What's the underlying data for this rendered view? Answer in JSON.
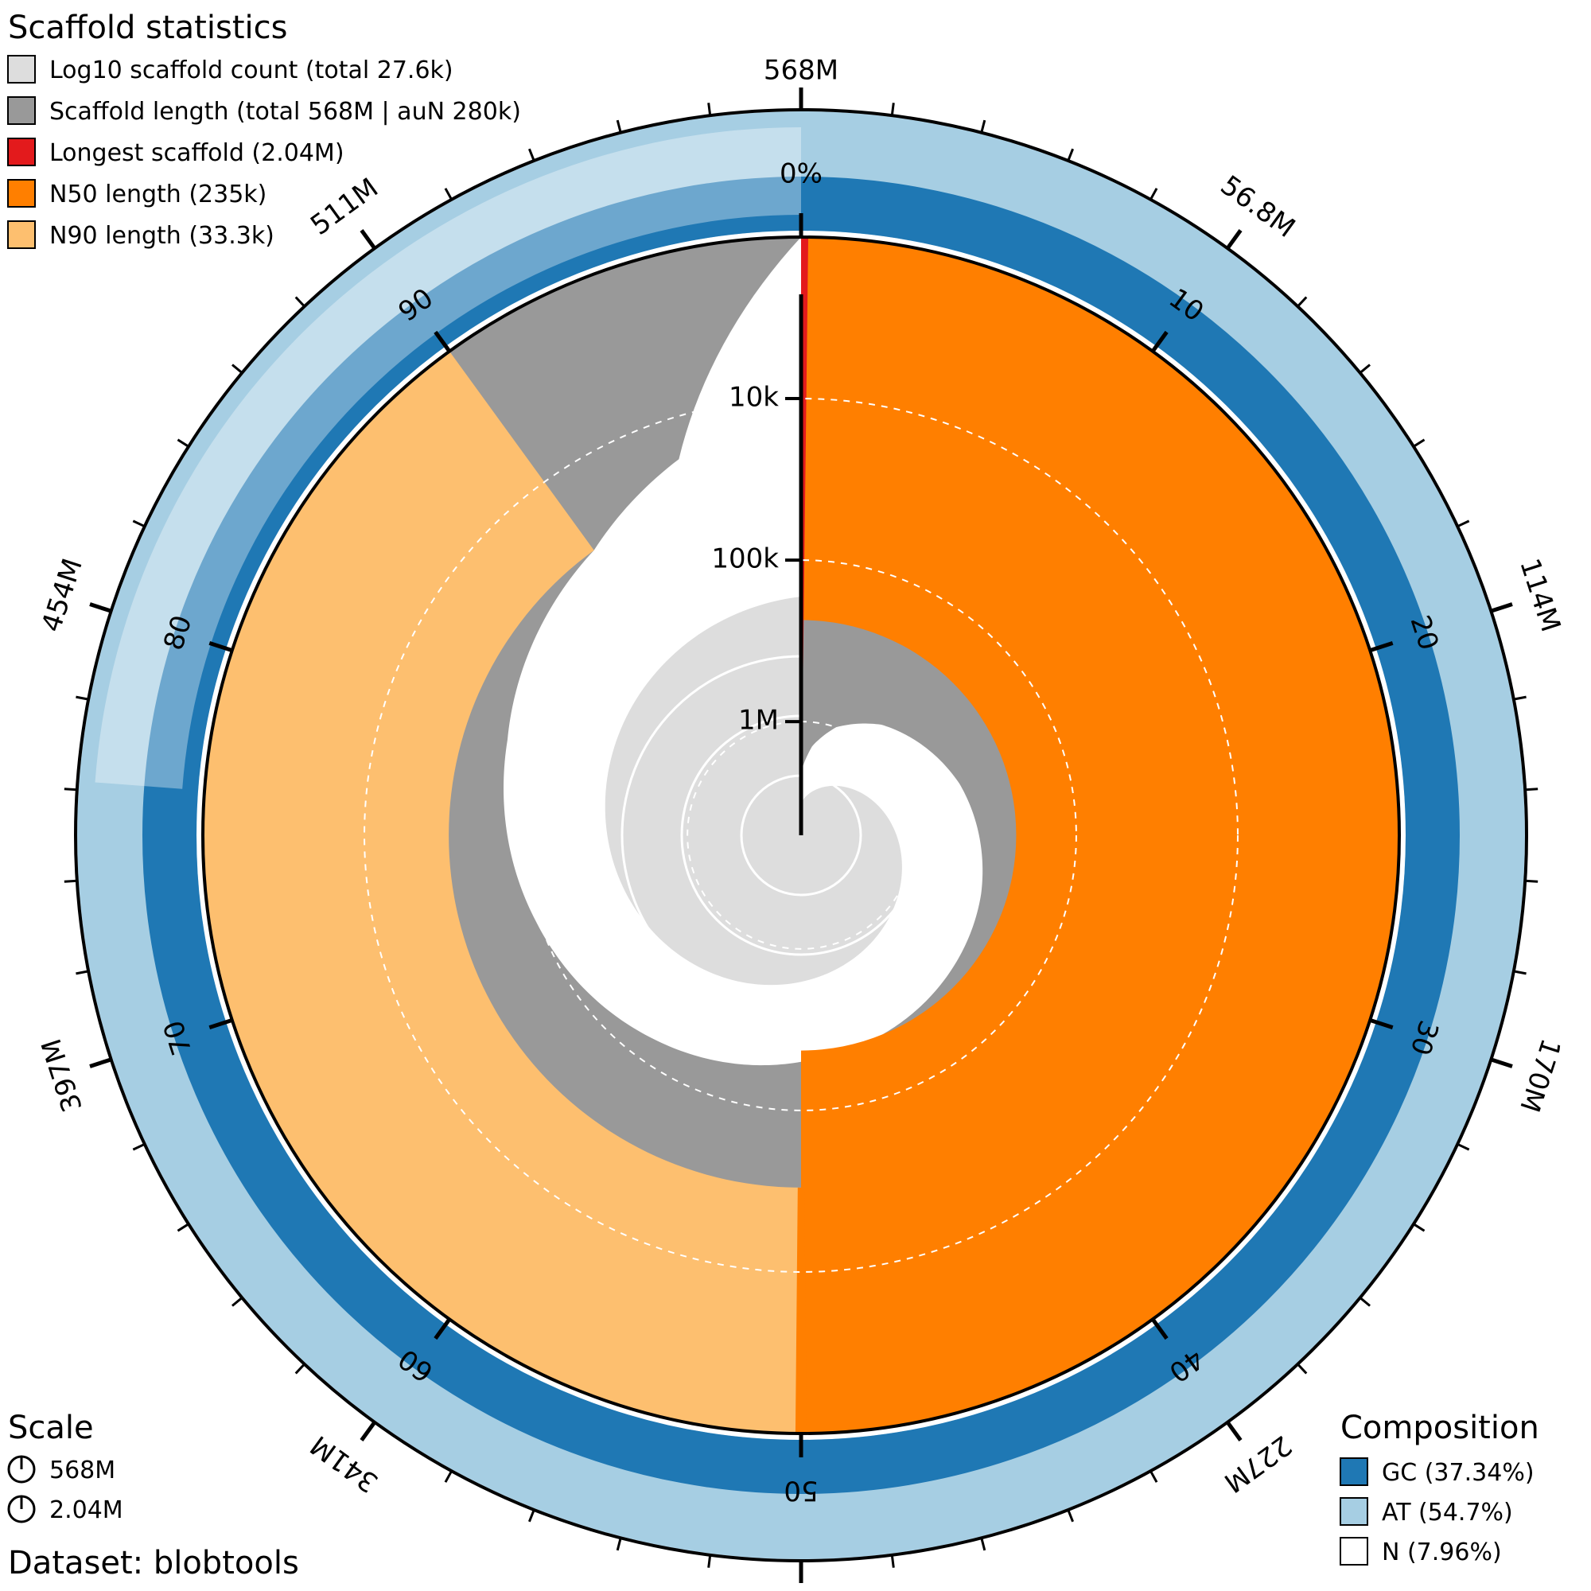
{
  "chart_data": {
    "type": "snail",
    "total_length_label": "568M",
    "percent_zero_label": "0%",
    "outer_ticks": [
      "56.8M",
      "114M",
      "170M",
      "227M",
      "284M",
      "341M",
      "397M",
      "454M",
      "511M"
    ],
    "percent_ticks": [
      "10",
      "20",
      "30",
      "40",
      "50",
      "60",
      "70",
      "80",
      "90"
    ],
    "radial_scale_labels": [
      "10k",
      "100k",
      "1M"
    ],
    "values": {
      "total_length": 568000000,
      "longest_scaffold": 2040000,
      "n50": 235000,
      "n90": 33300,
      "scaffold_count": 27600,
      "auN": 280000,
      "gc_percent": 37.34,
      "at_percent": 54.7,
      "n_percent": 7.96,
      "n90_end_percent": 90,
      "scaffold_length_profile_percent": [
        0,
        2,
        5,
        10,
        20,
        30,
        40,
        50,
        60,
        70,
        80,
        90,
        95,
        100
      ],
      "scaffold_length_profile_bp": [
        2040000,
        1400000,
        1000000,
        720000,
        470000,
        340000,
        260000,
        200000,
        140000,
        95000,
        62000,
        33300,
        18000,
        1000
      ]
    },
    "legend": {
      "title": "Scaffold statistics",
      "items": [
        {
          "label": "Log10 scaffold count (total 27.6k)",
          "color": "#dddddd"
        },
        {
          "label": "Scaffold length (total 568M | auN 280k)",
          "color": "#999999"
        },
        {
          "label": "Longest scaffold (2.04M)",
          "color": "#e31a1c"
        },
        {
          "label": "N50 length (235k)",
          "color": "#ff7f00"
        },
        {
          "label": "N90 length (33.3k)",
          "color": "#fdbf6f"
        }
      ]
    },
    "scale": {
      "title": "Scale",
      "items": [
        {
          "label": "568M"
        },
        {
          "label": "2.04M"
        }
      ]
    },
    "composition": {
      "title": "Composition",
      "items": [
        {
          "label": "GC (37.34%)",
          "color": "#1f78b4"
        },
        {
          "label": "AT (54.7%)",
          "color": "#a6cee3"
        },
        {
          "label": "N (7.96%)",
          "color": "#ffffff"
        }
      ]
    },
    "dataset_label": "Dataset: blobtools"
  }
}
